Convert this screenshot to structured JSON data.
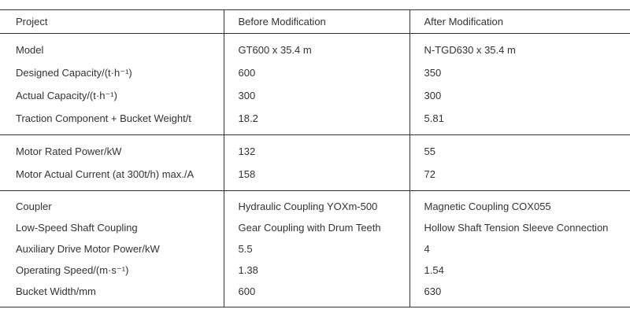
{
  "colors": {
    "background": "#ffffff",
    "text": "#333333",
    "border": "#333333"
  },
  "table": {
    "columns": [
      "Project",
      "Before Modification",
      "After Modification"
    ],
    "groups": [
      {
        "rows": [
          {
            "project": "Model",
            "before": "GT600 x 35.4 m",
            "after": "N-TGD630 x 35.4 m"
          },
          {
            "project": "Designed Capacity/(t·h⁻¹)",
            "before": "600",
            "after": "350"
          },
          {
            "project": "Actual Capacity/(t·h⁻¹)",
            "before": "300",
            "after": "300"
          },
          {
            "project": "Traction Component + Bucket Weight/t",
            "before": "18.2",
            "after": "5.81"
          }
        ]
      },
      {
        "rows": [
          {
            "project": "Motor Rated Power/kW",
            "before": "132",
            "after": "55"
          },
          {
            "project": "Motor Actual Current (at 300t/h) max./A",
            "before": "158",
            "after": "72"
          }
        ]
      },
      {
        "rows": [
          {
            "project": "Coupler",
            "before": "Hydraulic Coupling YOXm-500",
            "after": "Magnetic Coupling COX055"
          },
          {
            "project": "Low-Speed Shaft Coupling",
            "before": "Gear Coupling with Drum Teeth",
            "after": "Hollow Shaft Tension Sleeve Connection"
          },
          {
            "project": "Auxiliary Drive Motor Power/kW",
            "before": "5.5",
            "after": "4"
          },
          {
            "project": "Operating Speed/(m·s⁻¹)",
            "before": "1.38",
            "after": "1.54"
          },
          {
            "project": "Bucket Width/mm",
            "before": "600",
            "after": "630"
          }
        ]
      }
    ]
  }
}
